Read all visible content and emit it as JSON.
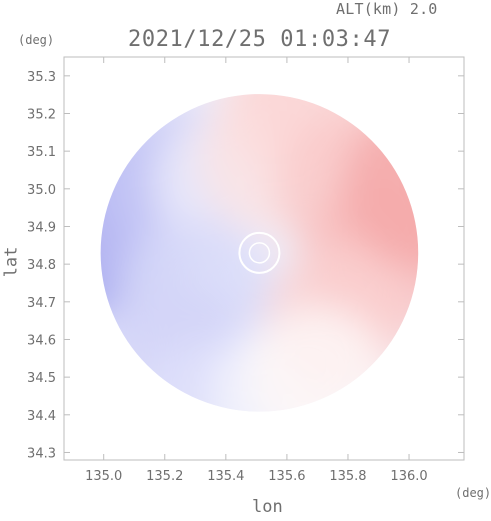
{
  "header": {
    "altitude_label": "ALT(km) 2.0",
    "timestamp": "2021/12/25 01:03:47"
  },
  "axes": {
    "x_unit": "(deg)",
    "y_unit": "(deg)",
    "x_label": "lon",
    "y_label": "lat"
  },
  "colors": {
    "approaching": "#7e82ea",
    "receding": "#f07a7a",
    "near_zero": "#ffffff",
    "frame": "#bdbdbd",
    "text": "#6f6f6f"
  },
  "chart_data": {
    "type": "heatmap",
    "title": "2021/12/25 01:03:47",
    "subtitle": "ALT(km) 2.0",
    "xlabel": "lon",
    "ylabel": "lat",
    "x_unit": "(deg)",
    "y_unit": "(deg)",
    "xlim": [
      134.87,
      136.18
    ],
    "ylim": [
      34.28,
      35.35
    ],
    "x_ticks": [
      135.0,
      135.2,
      135.4,
      135.6,
      135.8,
      136.0
    ],
    "x_tick_labels": [
      "135.0",
      "135.2",
      "135.4",
      "135.6",
      "135.8",
      "136.0"
    ],
    "y_ticks": [
      34.3,
      34.4,
      34.5,
      34.6,
      34.7,
      34.8,
      34.9,
      35.0,
      35.1,
      35.2,
      35.3
    ],
    "y_tick_labels": [
      "34.3",
      "34.4",
      "34.5",
      "34.6",
      "34.7",
      "34.8",
      "34.9",
      "35.0",
      "35.1",
      "35.2",
      "35.3"
    ],
    "radar_center": [
      135.51,
      34.83
    ],
    "radar_radius_deg": 0.52,
    "color_scale": "blue (negative) - white (zero) - red (positive)",
    "grid": false,
    "field": [
      {
        "lon": 134.95,
        "lat": 34.88,
        "value": -0.75
      },
      {
        "lon": 135.1,
        "lat": 34.95,
        "value": -0.55
      },
      {
        "lon": 135.25,
        "lat": 35.02,
        "value": -0.45
      },
      {
        "lon": 135.4,
        "lat": 35.02,
        "value": -0.15
      },
      {
        "lon": 135.3,
        "lat": 34.72,
        "value": -0.3
      },
      {
        "lon": 135.22,
        "lat": 34.55,
        "value": -0.35
      },
      {
        "lon": 135.35,
        "lat": 34.4,
        "value": -0.25
      },
      {
        "lon": 135.58,
        "lat": 34.45,
        "value": -0.1
      },
      {
        "lon": 135.55,
        "lat": 35.08,
        "value": 0.2
      },
      {
        "lon": 135.62,
        "lat": 35.22,
        "value": 0.25
      },
      {
        "lon": 135.7,
        "lat": 35.28,
        "value": 0.3
      },
      {
        "lon": 135.82,
        "lat": 35.0,
        "value": 0.4
      },
      {
        "lon": 135.92,
        "lat": 34.82,
        "value": 0.5
      },
      {
        "lon": 135.78,
        "lat": 34.65,
        "value": 0.35
      },
      {
        "lon": 136.05,
        "lat": 35.0,
        "value": 0.65
      },
      {
        "lon": 135.7,
        "lat": 34.5,
        "value": 0.05
      }
    ]
  }
}
